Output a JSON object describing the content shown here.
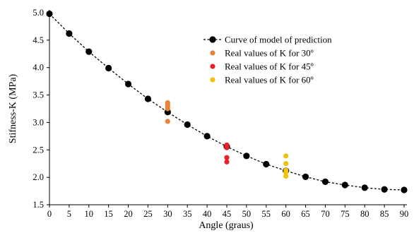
{
  "chart_data": {
    "type": "scatter",
    "xlabel": "Angle (graus)",
    "ylabel": "Stifness-K (MPa)",
    "xlim": [
      0,
      90
    ],
    "ylim": [
      1.5,
      5.0
    ],
    "xticks": [
      0,
      5,
      10,
      15,
      20,
      25,
      30,
      35,
      40,
      45,
      50,
      55,
      60,
      65,
      70,
      75,
      80,
      85,
      90
    ],
    "yticks": [
      "1.5",
      "2.0",
      "2.5",
      "3.0",
      "3.5",
      "4.0",
      "4.5",
      "5.0"
    ],
    "grid": false,
    "legend_position": "top-right",
    "series": [
      {
        "name": "Curve of model of prediction",
        "color": "#000000",
        "line": "dashed",
        "x": [
          0,
          5,
          10,
          15,
          20,
          25,
          30,
          35,
          40,
          45,
          50,
          55,
          60,
          65,
          70,
          75,
          80,
          85,
          90
        ],
        "y": [
          4.98,
          4.62,
          4.29,
          3.99,
          3.7,
          3.43,
          3.19,
          2.96,
          2.75,
          2.56,
          2.39,
          2.24,
          2.12,
          2.01,
          1.92,
          1.86,
          1.81,
          1.78,
          1.77
        ]
      },
      {
        "name": "Real values of K for 30º",
        "color": "#E8833A",
        "x": [
          30,
          30,
          30,
          30,
          30
        ],
        "y": [
          3.36,
          3.32,
          3.28,
          3.25,
          3.02
        ]
      },
      {
        "name": "Real values of K for 45º",
        "color": "#E8202A",
        "x": [
          45,
          45,
          45,
          45,
          45
        ],
        "y": [
          2.59,
          2.56,
          2.54,
          2.36,
          2.28
        ]
      },
      {
        "name": "Real values of K for 60º",
        "color": "#F2C10E",
        "x": [
          60,
          60,
          60,
          60,
          60
        ],
        "y": [
          2.39,
          2.25,
          2.13,
          2.09,
          2.02
        ]
      }
    ]
  }
}
